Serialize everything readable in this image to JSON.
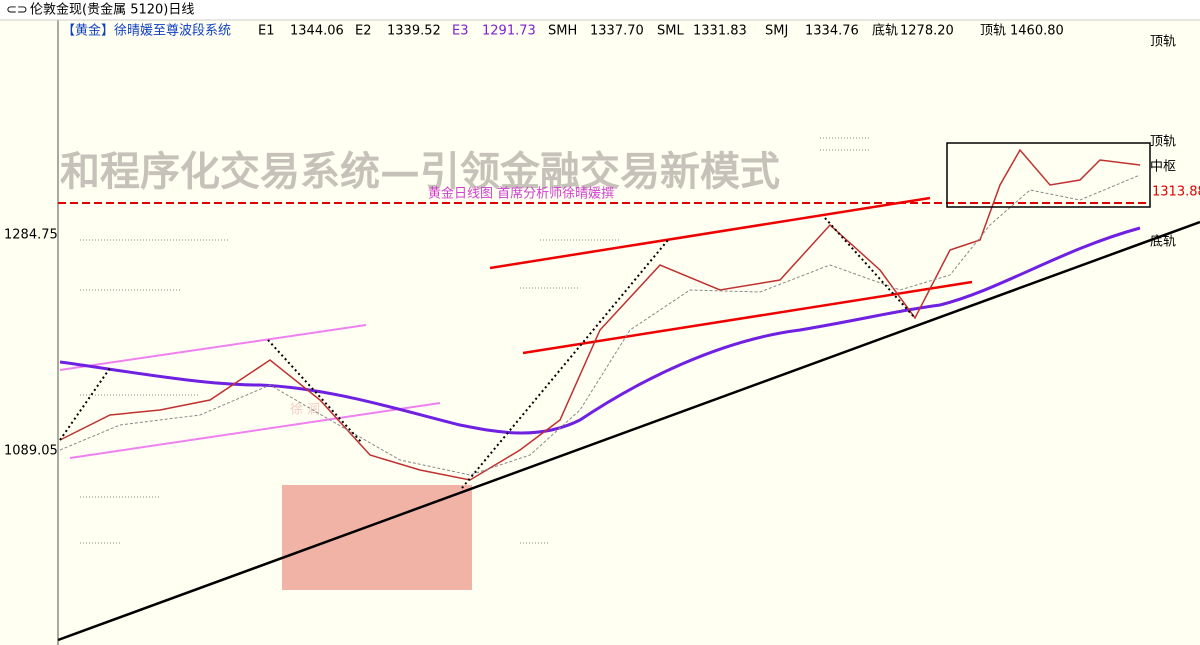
{
  "header": {
    "title": "伦敦金现(贵金属 5120)日线"
  },
  "indicator_bar": {
    "system": "【黄金】徐晴媛至尊波段系统",
    "items": [
      {
        "name": "E1",
        "value": "1344.06"
      },
      {
        "name": "E2",
        "value": "1339.52"
      },
      {
        "name": "E3",
        "value": "1291.73"
      },
      {
        "name": "SMH",
        "value": "1337.70"
      },
      {
        "name": "SML",
        "value": "1331.83"
      },
      {
        "name": "SMJ",
        "value": "1334.76"
      },
      {
        "name": "底轨",
        "value": "1278.20"
      },
      {
        "name": "顶轨",
        "value": "1460.80"
      }
    ]
  },
  "y_axis": {
    "labels": [
      "1284.75",
      "1089.05"
    ]
  },
  "right_labels": [
    "顶轨",
    "顶轨",
    "中枢",
    "1313.88",
    "底轨"
  ],
  "annotations": {
    "watermark": "和程序化交易系统—引领金融交易新模式",
    "subtitle": "黄金日线图  首席分析师徐晴媛撰"
  }
}
